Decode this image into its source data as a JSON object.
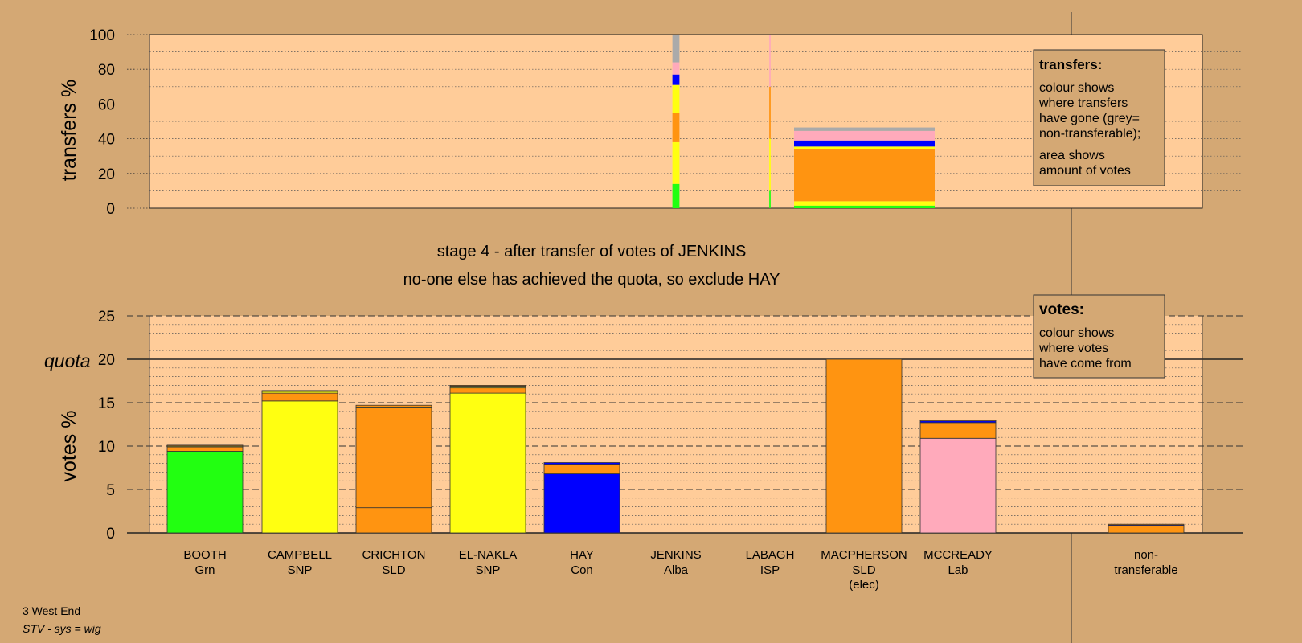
{
  "colors": {
    "background": "#d4a874",
    "plot_bg": "#ffcc99",
    "Grn": "#22ff11",
    "SNP": "#ffff11",
    "SLD": "#ff9411",
    "Con": "#0000ff",
    "Lab": "#ffaabb",
    "nontransferable": "#aaaaaa"
  },
  "footer": {
    "line1": "3 West End",
    "line2": "STV - sys = wig"
  },
  "stage": {
    "title": "stage 4 - after transfer of votes of JENKINS",
    "subtitle": "no-one else has achieved the quota, so exclude HAY"
  },
  "legend_transfers": {
    "title": "transfers:",
    "lines": [
      "colour shows",
      "where transfers",
      "have gone (grey=",
      "non-transferable);",
      "area shows",
      "amount of votes"
    ]
  },
  "legend_votes": {
    "title": "votes:",
    "lines": [
      "colour shows",
      "where votes",
      "have come from"
    ]
  },
  "chart_data": [
    {
      "type": "bar",
      "name": "transfers",
      "ylabel": "transfers %",
      "ylim": [
        0,
        100
      ],
      "yticks": [
        0,
        20,
        40,
        60,
        80,
        100
      ],
      "grid": true,
      "columns": [
        {
          "candidate": "JENKINS",
          "width_share": 0.05,
          "segments": [
            {
              "party": "Grn",
              "value": 14
            },
            {
              "party": "SNP",
              "value": 24
            },
            {
              "party": "SLD",
              "value": 17
            },
            {
              "party": "SNP",
              "value": 16
            },
            {
              "party": "Con",
              "value": 6
            },
            {
              "party": "Lab",
              "value": 7
            },
            {
              "party": "nontransferable",
              "value": 16
            }
          ]
        },
        {
          "candidate": "LABAGH",
          "width_share": 0.01,
          "segments": [
            {
              "party": "Grn",
              "value": 10
            },
            {
              "party": "SNP",
              "value": 30
            },
            {
              "party": "SLD",
              "value": 30
            },
            {
              "party": "Lab",
              "value": 30
            }
          ]
        },
        {
          "candidate": "MACPHERSON",
          "width_share": 1.0,
          "segments": [
            {
              "party": "Grn",
              "value": 1.5
            },
            {
              "party": "SNP",
              "value": 2.5
            },
            {
              "party": "SLD",
              "value": 30
            },
            {
              "party": "SNP",
              "value": 1.5
            },
            {
              "party": "Con",
              "value": 3.5
            },
            {
              "party": "Lab",
              "value": 5.5
            },
            {
              "party": "nontransferable",
              "value": 2
            }
          ]
        }
      ]
    },
    {
      "type": "bar",
      "name": "votes",
      "ylabel": "votes %",
      "ylim": [
        0,
        25
      ],
      "yticks": [
        0,
        5,
        10,
        15,
        20,
        25
      ],
      "quota": 20,
      "quota_label": "quota",
      "categories": [
        {
          "name": "BOOTH",
          "party": "Grn"
        },
        {
          "name": "CAMPBELL",
          "party": "SNP"
        },
        {
          "name": "CRICHTON",
          "party": "SLD"
        },
        {
          "name": "EL-NAKLA",
          "party": "SNP"
        },
        {
          "name": "HAY",
          "party": "Con"
        },
        {
          "name": "JENKINS",
          "party": "Alba"
        },
        {
          "name": "LABAGH",
          "party": "ISP"
        },
        {
          "name": "MACPHERSON",
          "party": "SLD",
          "note": "(elec)"
        },
        {
          "name": "MCCREADY",
          "party": "Lab"
        },
        {
          "name": "non-",
          "party": "transferable"
        }
      ],
      "bars": [
        {
          "segments": [
            {
              "c": "Grn",
              "v": 9.4
            },
            {
              "c": "SLD",
              "v": 0.5
            },
            {
              "c": "SNP",
              "v": 0.1
            },
            {
              "c": "SLD",
              "v": 0.1
            }
          ]
        },
        {
          "segments": [
            {
              "c": "SNP",
              "v": 15.2
            },
            {
              "c": "SLD",
              "v": 0.9
            },
            {
              "c": "SNP",
              "v": 0.2
            },
            {
              "c": "SLD",
              "v": 0.1
            }
          ]
        },
        {
          "segments": [
            {
              "c": "SLD",
              "v": 2.9
            },
            {
              "c": "SLD",
              "v": 11.5
            },
            {
              "c": "SNP",
              "v": 0.1
            },
            {
              "c": "SLD",
              "v": 0.2
            }
          ]
        },
        {
          "segments": [
            {
              "c": "SNP",
              "v": 16.1
            },
            {
              "c": "SLD",
              "v": 0.6
            },
            {
              "c": "SNP",
              "v": 0.2
            },
            {
              "c": "SLD",
              "v": 0.1
            }
          ]
        },
        {
          "segments": [
            {
              "c": "Con",
              "v": 6.8
            },
            {
              "c": "SLD",
              "v": 1.1
            },
            {
              "c": "Con",
              "v": 0.2
            }
          ]
        },
        {
          "segments": []
        },
        {
          "segments": []
        },
        {
          "segments": [
            {
              "c": "SLD",
              "v": 20
            }
          ]
        },
        {
          "segments": [
            {
              "c": "Lab",
              "v": 10.9
            },
            {
              "c": "SLD",
              "v": 1.8
            },
            {
              "c": "Con",
              "v": 0.2
            },
            {
              "c": "SLD",
              "v": 0.1
            }
          ]
        },
        {
          "segments": [
            {
              "c": "SLD",
              "v": 0.8
            },
            {
              "c": "Con",
              "v": 0.1
            },
            {
              "c": "SLD",
              "v": 0.1
            }
          ]
        }
      ]
    }
  ]
}
